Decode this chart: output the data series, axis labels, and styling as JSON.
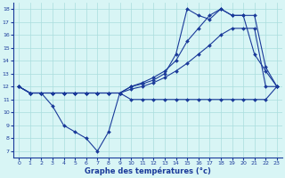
{
  "xlabel": "Graphe des températures (°c)",
  "xlim": [
    -0.5,
    23.5
  ],
  "ylim": [
    6.5,
    18.5
  ],
  "yticks": [
    7,
    8,
    9,
    10,
    11,
    12,
    13,
    14,
    15,
    16,
    17,
    18
  ],
  "xticks": [
    0,
    1,
    2,
    3,
    4,
    5,
    6,
    7,
    8,
    9,
    10,
    11,
    12,
    13,
    14,
    15,
    16,
    17,
    18,
    19,
    20,
    21,
    22,
    23
  ],
  "background_color": "#d8f5f5",
  "grid_color": "#aadddd",
  "line_color": "#1a3a9a",
  "line1_y": [
    12,
    11.5,
    11.5,
    11.5,
    11.5,
    11.5,
    11.5,
    11.5,
    11.5,
    11.5,
    11.8,
    12.0,
    12.3,
    12.7,
    13.2,
    13.8,
    14.5,
    15.2,
    16.0,
    16.5,
    16.5,
    16.5,
    12.0,
    12.0
  ],
  "line2_y": [
    12,
    11.5,
    11.5,
    11.5,
    11.5,
    11.5,
    11.5,
    11.5,
    11.5,
    11.5,
    12.0,
    12.3,
    12.7,
    13.2,
    14.0,
    15.5,
    16.5,
    17.5,
    18.0,
    17.5,
    17.5,
    17.5,
    13.5,
    12.0
  ],
  "line3_y": [
    12,
    11.5,
    11.5,
    11.5,
    11.5,
    11.5,
    11.5,
    11.5,
    11.5,
    11.5,
    12.0,
    12.2,
    12.5,
    13.0,
    14.5,
    18.0,
    17.5,
    17.2,
    18.0,
    17.5,
    17.5,
    14.5,
    13.2,
    12.0
  ],
  "line4_y": [
    12,
    11.5,
    11.5,
    10.5,
    9.0,
    8.5,
    8.0,
    7.0,
    8.5,
    11.5,
    11.0,
    11.0,
    11.0,
    11.0,
    11.0,
    11.0,
    11.0,
    11.0,
    11.0,
    11.0,
    11.0,
    11.0,
    11.0,
    12.0
  ]
}
